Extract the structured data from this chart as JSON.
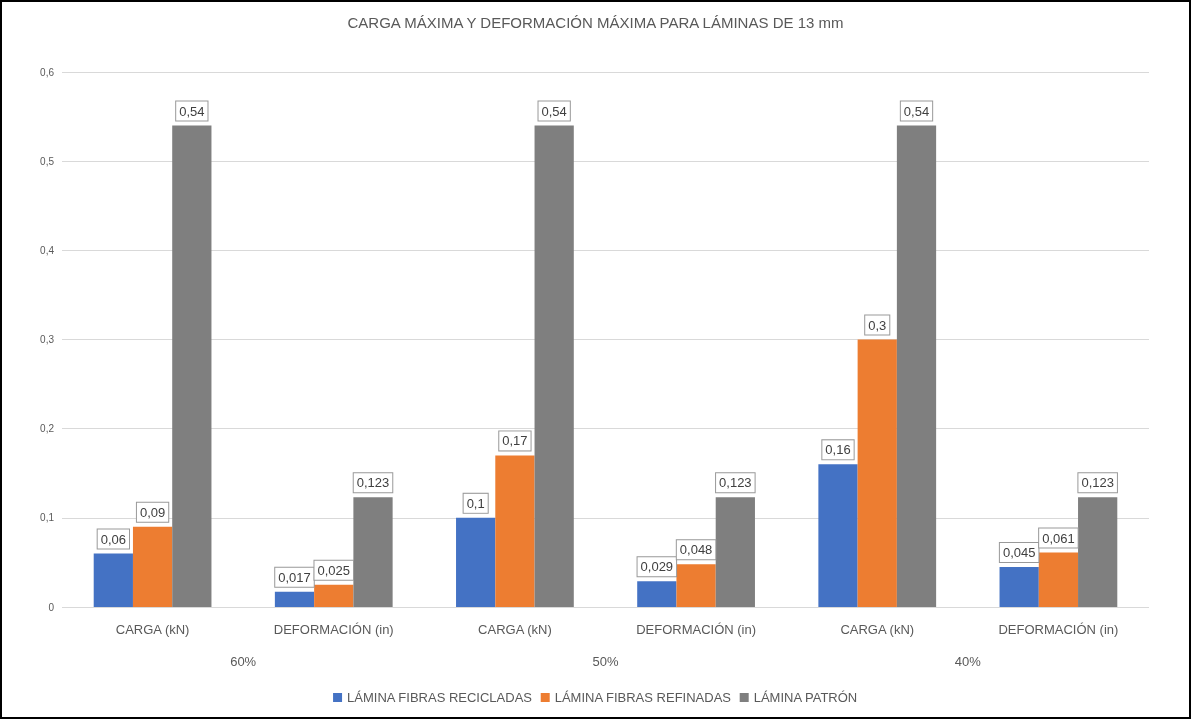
{
  "chart_data": {
    "type": "bar",
    "title": "CARGA MÁXIMA Y DEFORMACIÓN MÁXIMA PARA LÁMINAS DE 13 mm",
    "categories": [
      "CARGA (kN)",
      "DEFORMACIÓN (in)",
      "CARGA (kN)",
      "DEFORMACIÓN (in)",
      "CARGA (kN)",
      "DEFORMACIÓN (in)"
    ],
    "annotations": [
      "60%",
      "50%",
      "40%"
    ],
    "series": [
      {
        "name": "LÁMINA FIBRAS RECICLADAS",
        "color": "#4472c4",
        "values": [
          0.06,
          0.017,
          0.1,
          0.029,
          0.16,
          0.045
        ],
        "value_labels": [
          "0,06",
          "0,017",
          "0,1",
          "0,029",
          "0,16",
          "0,045"
        ]
      },
      {
        "name": "LÁMINA FIBRAS REFINADAS",
        "color": "#ed7d31",
        "values": [
          0.09,
          0.025,
          0.17,
          0.048,
          0.3,
          0.061
        ],
        "value_labels": [
          "0,09",
          "0,025",
          "0,17",
          "0,048",
          "0,3",
          "0,061"
        ]
      },
      {
        "name": "LÁMINA PATRÓN",
        "color": "#7f7f7f",
        "values": [
          0.54,
          0.123,
          0.54,
          0.123,
          0.54,
          0.123
        ],
        "value_labels": [
          "0,54",
          "0,123",
          "0,54",
          "0,123",
          "0,54",
          "0,123"
        ]
      }
    ],
    "ylim": [
      0,
      0.6
    ],
    "yticks": [
      {
        "value": 0,
        "label": "0"
      },
      {
        "value": 0.1,
        "label": "0,1"
      },
      {
        "value": 0.2,
        "label": "0,2"
      },
      {
        "value": 0.3,
        "label": "0,3"
      },
      {
        "value": 0.4,
        "label": "0,4"
      },
      {
        "value": 0.5,
        "label": "0,5"
      },
      {
        "value": 0.6,
        "label": "0,6"
      }
    ],
    "grid": "y",
    "legend": "bottom"
  }
}
